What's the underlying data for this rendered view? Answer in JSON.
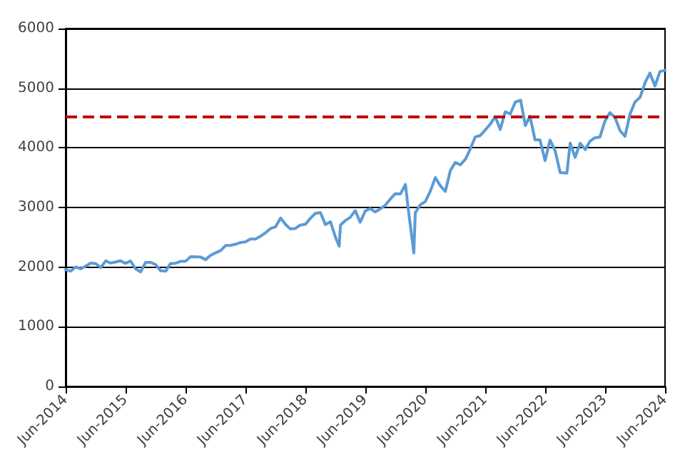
{
  "chart_data": {
    "type": "line",
    "x": [
      "2014-06",
      "2014-07",
      "2014-08",
      "2014-09",
      "2014-10",
      "2014-11",
      "2014-12",
      "2015-01",
      "2015-02",
      "2015-03",
      "2015-04",
      "2015-05",
      "2015-06",
      "2015-07",
      "2015-08",
      "2015-09",
      "2015-10",
      "2015-11",
      "2015-12",
      "2016-01",
      "2016-02",
      "2016-03",
      "2016-04",
      "2016-05",
      "2016-06",
      "2016-07",
      "2016-08",
      "2016-09",
      "2016-10",
      "2016-11",
      "2016-12",
      "2017-01",
      "2017-02",
      "2017-03",
      "2017-04",
      "2017-05",
      "2017-06",
      "2017-07",
      "2017-08",
      "2017-09",
      "2017-10",
      "2017-11",
      "2017-12",
      "2018-01",
      "2018-02",
      "2018-03",
      "2018-04",
      "2018-05",
      "2018-06",
      "2018-07",
      "2018-08",
      "2018-09",
      "2018-10",
      "2018-11",
      "2018-12",
      "2018-12-24",
      "2019-01",
      "2019-02",
      "2019-03",
      "2019-04",
      "2019-05",
      "2019-06",
      "2019-07",
      "2019-08",
      "2019-09",
      "2019-10",
      "2019-11",
      "2019-12",
      "2020-01",
      "2020-02",
      "2020-02-19",
      "2020-03-23",
      "2020-04",
      "2020-05",
      "2020-06",
      "2020-07",
      "2020-08",
      "2020-09",
      "2020-10",
      "2020-11",
      "2020-12",
      "2021-01",
      "2021-02",
      "2021-03",
      "2021-04",
      "2021-05",
      "2021-06",
      "2021-07",
      "2021-08",
      "2021-09",
      "2021-10",
      "2021-11",
      "2021-12",
      "2022-01-03",
      "2022-02",
      "2022-03",
      "2022-04",
      "2022-05",
      "2022-06",
      "2022-07",
      "2022-08",
      "2022-09",
      "2022-10-12",
      "2022-11",
      "2022-12",
      "2023-01",
      "2023-02",
      "2023-03",
      "2023-04",
      "2023-05",
      "2023-06",
      "2023-07",
      "2023-08",
      "2023-09",
      "2023-10",
      "2023-11",
      "2023-12",
      "2024-01",
      "2024-02",
      "2024-03",
      "2024-04",
      "2024-05",
      "2024-06"
    ],
    "series": [
      {
        "color": "#5b9bd5",
        "values": [
          1960,
          1931,
          2003,
          1972,
          2018,
          2068,
          2059,
          1995,
          2105,
          2068,
          2086,
          2107,
          2063,
          2104,
          1972,
          1920,
          2079,
          2080,
          2044,
          1940,
          1932,
          2060,
          2065,
          2097,
          2099,
          2174,
          2171,
          2168,
          2126,
          2199,
          2239,
          2279,
          2364,
          2363,
          2384,
          2412,
          2423,
          2470,
          2472,
          2519,
          2575,
          2648,
          2674,
          2824,
          2714,
          2641,
          2648,
          2705,
          2718,
          2816,
          2902,
          2914,
          2712,
          2760,
          2507,
          2351,
          2704,
          2784,
          2834,
          2946,
          2752,
          2942,
          2980,
          2926,
          2977,
          3038,
          3141,
          3231,
          3226,
          3386,
          2954,
          2237,
          2912,
          3044,
          3100,
          3271,
          3500,
          3363,
          3270,
          3622,
          3756,
          3714,
          3811,
          3973,
          4181,
          4204,
          4298,
          4395,
          4523,
          4308,
          4605,
          4567,
          4766,
          4797,
          4374,
          4530,
          4132,
          4132,
          3785,
          4130,
          3955,
          3586,
          3577,
          4080,
          3840,
          4077,
          3970,
          4109,
          4169,
          4180,
          4450,
          4589,
          4508,
          4288,
          4194,
          4568,
          4770,
          4846,
          5096,
          5254,
          5036,
          5278,
          5300
        ]
      }
    ],
    "xlim": [
      "2014-06",
      "2024-06"
    ],
    "xticks": [
      {
        "value": "2014-06",
        "label": "Jun-2014"
      },
      {
        "value": "2015-06",
        "label": "Jun-2015"
      },
      {
        "value": "2016-06",
        "label": "Jun-2016"
      },
      {
        "value": "2017-06",
        "label": "Jun-2017"
      },
      {
        "value": "2018-06",
        "label": "Jun-2018"
      },
      {
        "value": "2019-06",
        "label": "Jun-2019"
      },
      {
        "value": "2020-06",
        "label": "Jun-2020"
      },
      {
        "value": "2021-06",
        "label": "Jun-2021"
      },
      {
        "value": "2022-06",
        "label": "Jun-2022"
      },
      {
        "value": "2023-06",
        "label": "Jun-2023"
      },
      {
        "value": "2024-06",
        "label": "Jun-2024"
      }
    ],
    "ylim": [
      0,
      6000
    ],
    "yticks": [
      0,
      1000,
      2000,
      3000,
      4000,
      5000,
      6000
    ],
    "grid": "y",
    "marker": "none",
    "line_style": "solid",
    "ref_lines": [
      {
        "axis": "y",
        "value": 4530,
        "color": "#c00000",
        "line_style": "dashed"
      }
    ]
  }
}
